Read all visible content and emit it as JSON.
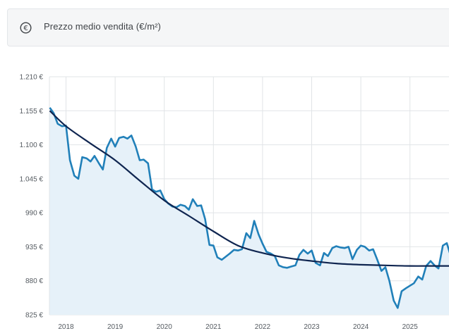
{
  "header": {
    "title": "Prezzo medio vendita (€/m²)",
    "icon": "euro-coin-icon"
  },
  "colors": {
    "series_line": "#2180b9",
    "series_fill": "#e6f1f9",
    "trend_line": "#0f2550",
    "grid": "#e1e4e7"
  },
  "chart_data": {
    "type": "area",
    "title": "Prezzo medio vendita (€/m²)",
    "xlabel": "",
    "ylabel": "",
    "ylim": [
      825,
      1210
    ],
    "y_ticks": [
      1210,
      1155,
      1100,
      1045,
      990,
      935,
      880,
      825
    ],
    "y_tick_labels": [
      "1.210 €",
      "1.155 €",
      "1.100 €",
      "1.045 €",
      "990 €",
      "935 €",
      "880 €",
      "825 €"
    ],
    "x_ticks": [
      2018,
      2019,
      2020,
      2021,
      2022,
      2023,
      2024,
      2025
    ],
    "x_tick_labels": [
      "2018",
      "2019",
      "2020",
      "2021",
      "2022",
      "2023",
      "2024",
      "2025"
    ],
    "grid": true,
    "series": [
      {
        "kind": "area-line",
        "x": [
          2017.67,
          2017.75,
          2017.83,
          2017.92,
          2018.0,
          2018.08,
          2018.17,
          2018.25,
          2018.33,
          2018.42,
          2018.5,
          2018.58,
          2018.67,
          2018.75,
          2018.83,
          2018.92,
          2019.0,
          2019.08,
          2019.17,
          2019.25,
          2019.33,
          2019.42,
          2019.5,
          2019.58,
          2019.67,
          2019.75,
          2019.83,
          2019.92,
          2020.0,
          2020.08,
          2020.17,
          2020.25,
          2020.33,
          2020.42,
          2020.5,
          2020.58,
          2020.67,
          2020.75,
          2020.83,
          2020.92,
          2021.0,
          2021.08,
          2021.17,
          2021.25,
          2021.33,
          2021.42,
          2021.5,
          2021.58,
          2021.67,
          2021.75,
          2021.83,
          2021.92,
          2022.0,
          2022.08,
          2022.17,
          2022.25,
          2022.33,
          2022.42,
          2022.5,
          2022.58,
          2022.67,
          2022.75,
          2022.83,
          2022.92,
          2023.0,
          2023.08,
          2023.17,
          2023.25,
          2023.33,
          2023.42,
          2023.5,
          2023.58,
          2023.67,
          2023.75,
          2023.83,
          2023.92,
          2024.0,
          2024.08,
          2024.17,
          2024.25,
          2024.33,
          2024.42,
          2024.5,
          2024.58,
          2024.67,
          2024.75,
          2024.83,
          2024.92,
          2025.0,
          2025.08,
          2025.17,
          2025.25,
          2025.33,
          2025.42,
          2025.5,
          2025.58,
          2025.67,
          2025.75,
          2025.83
        ],
        "values": [
          1160,
          1151,
          1134,
          1130,
          1131,
          1075,
          1050,
          1045,
          1080,
          1078,
          1073,
          1082,
          1070,
          1060,
          1095,
          1110,
          1097,
          1111,
          1113,
          1110,
          1115,
          1097,
          1075,
          1076,
          1070,
          1028,
          1024,
          1026,
          1012,
          1005,
          1000,
          999,
          1003,
          1001,
          995,
          1012,
          1001,
          1002,
          980,
          938,
          937,
          918,
          914,
          919,
          924,
          930,
          929,
          931,
          957,
          949,
          977,
          955,
          940,
          927,
          924,
          920,
          905,
          902,
          901,
          903,
          905,
          922,
          930,
          924,
          929,
          909,
          905,
          925,
          920,
          933,
          936,
          934,
          933,
          935,
          915,
          930,
          937,
          935,
          929,
          931,
          915,
          896,
          902,
          880,
          848,
          836,
          863,
          868,
          872,
          876,
          887,
          882,
          904,
          912,
          905,
          900,
          937,
          941,
          920
        ]
      },
      {
        "kind": "trend-line",
        "x": [
          2017.67,
          2018.0,
          2018.5,
          2019.0,
          2019.5,
          2020.0,
          2020.5,
          2021.0,
          2021.5,
          2022.0,
          2022.5,
          2023.0,
          2023.5,
          2024.0,
          2024.5,
          2025.0,
          2025.5,
          2025.83
        ],
        "values": [
          1155,
          1130,
          1102,
          1075,
          1042,
          1010,
          985,
          960,
          937,
          925,
          917,
          912,
          908,
          906,
          905,
          904,
          904,
          904
        ]
      }
    ]
  }
}
